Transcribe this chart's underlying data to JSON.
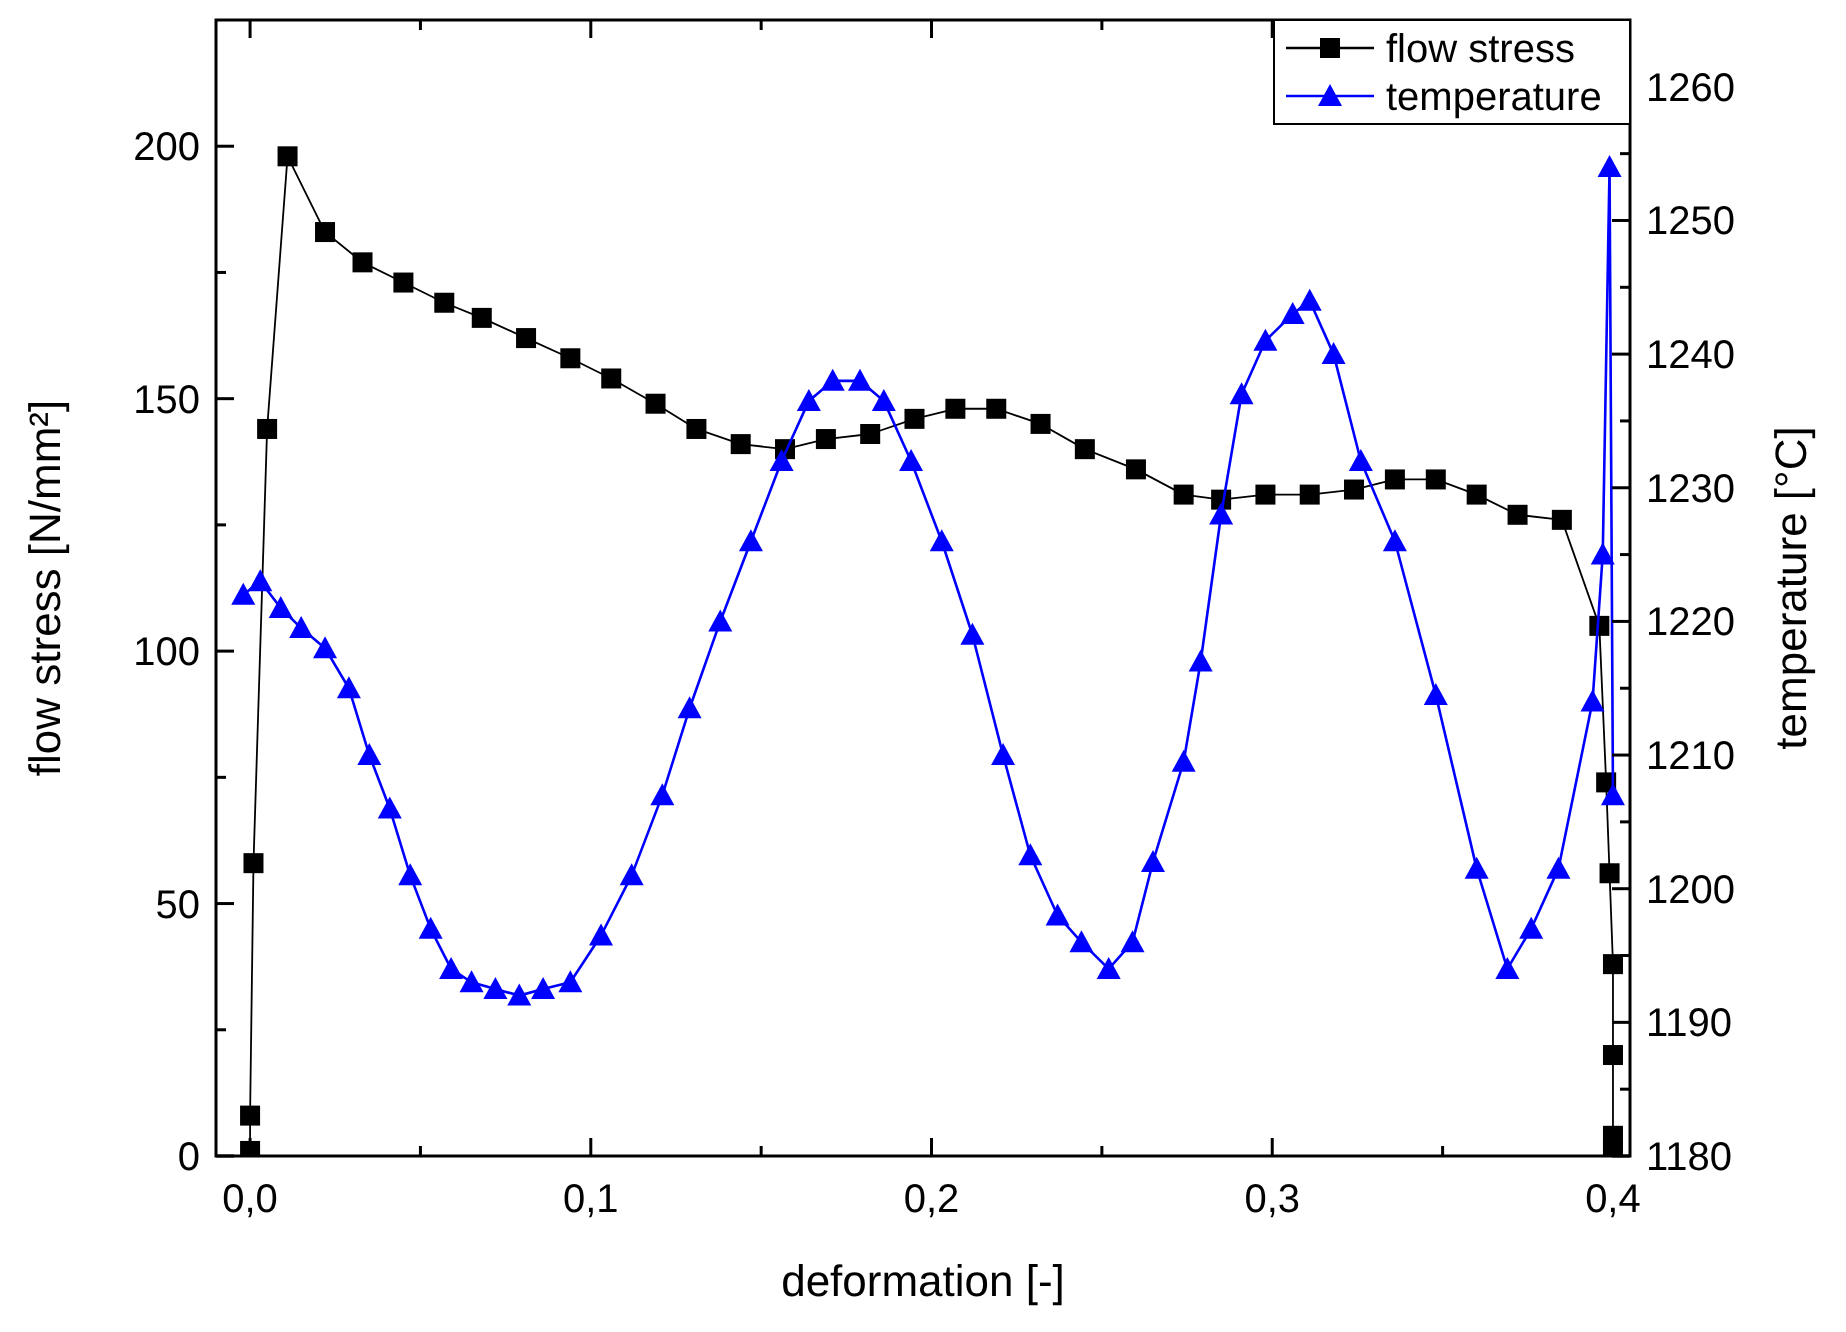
{
  "chart_data": {
    "type": "line",
    "xlabel": "deformation [-]",
    "ylabel": "flow stress [N/mm²]",
    "y2label": "temperature [°C]",
    "xlim": [
      -0.01,
      0.405
    ],
    "xticks": [
      {
        "value": 0,
        "label": "0,0"
      },
      {
        "value": 0.05,
        "label": null
      },
      {
        "value": 0.1,
        "label": "0,1"
      },
      {
        "value": 0.15,
        "label": null
      },
      {
        "value": 0.2,
        "label": "0,2"
      },
      {
        "value": 0.25,
        "label": null
      },
      {
        "value": 0.3,
        "label": "0,3"
      },
      {
        "value": 0.35,
        "label": null
      },
      {
        "value": 0.4,
        "label": "0,4"
      }
    ],
    "ylim": [
      0,
      225
    ],
    "yticks": [
      0,
      {
        "value": 25,
        "label": null
      },
      50,
      {
        "value": 75,
        "label": null
      },
      100,
      {
        "value": 125,
        "label": null
      },
      150,
      {
        "value": 175,
        "label": null
      },
      200
    ],
    "y2lim": [
      1180,
      1265
    ],
    "y2ticks": [
      1180,
      {
        "value": 1185,
        "label": null
      },
      1190,
      {
        "value": 1195,
        "label": null
      },
      1200,
      {
        "value": 1205,
        "label": null
      },
      1210,
      {
        "value": 1215,
        "label": null
      },
      1220,
      {
        "value": 1225,
        "label": null
      },
      1230,
      {
        "value": 1235,
        "label": null
      },
      1240,
      {
        "value": 1245,
        "label": null
      },
      1250,
      {
        "value": 1255,
        "label": null
      },
      1260
    ],
    "grid": false,
    "legend": "top right",
    "series": [
      {
        "name": "flow stress",
        "color": "#000000",
        "marker": "square",
        "x": [
          0.0,
          0.0,
          0.001,
          0.005,
          0.011,
          0.022,
          0.033,
          0.045,
          0.057,
          0.068,
          0.081,
          0.094,
          0.106,
          0.119,
          0.131,
          0.144,
          0.157,
          0.169,
          0.182,
          0.195,
          0.207,
          0.219,
          0.232,
          0.245,
          0.26,
          0.274,
          0.285,
          0.298,
          0.311,
          0.324,
          0.336,
          0.348,
          0.36,
          0.372,
          0.385,
          0.396,
          0.398,
          0.399,
          0.4,
          0.4,
          0.4,
          0.4
        ],
        "values": [
          1,
          8,
          58,
          144,
          198,
          183,
          177,
          173,
          169,
          166,
          162,
          158,
          154,
          149,
          144,
          141,
          140,
          142,
          143,
          146,
          148,
          148,
          145,
          140,
          136,
          131,
          130,
          131,
          131,
          132,
          134,
          134,
          131,
          127,
          126,
          105,
          74,
          56,
          38,
          20,
          4,
          1
        ]
      },
      {
        "name": "temperature",
        "color": "#0000ff",
        "marker": "triangle",
        "axis": "y2",
        "x": [
          -0.002,
          0.003,
          0.009,
          0.015,
          0.022,
          0.029,
          0.035,
          0.041,
          0.047,
          0.053,
          0.059,
          0.065,
          0.072,
          0.079,
          0.086,
          0.094,
          0.103,
          0.112,
          0.121,
          0.129,
          0.138,
          0.147,
          0.156,
          0.164,
          0.171,
          0.179,
          0.186,
          0.194,
          0.203,
          0.212,
          0.221,
          0.229,
          0.237,
          0.244,
          0.252,
          0.259,
          0.265,
          0.274,
          0.279,
          0.285,
          0.291,
          0.298,
          0.306,
          0.311,
          0.318,
          0.326,
          0.336,
          0.348,
          0.36,
          0.369,
          0.376,
          0.384,
          0.394,
          0.397,
          0.399,
          0.4
        ],
        "values": [
          1222,
          1223,
          1221,
          1219.5,
          1218,
          1215,
          1210,
          1206,
          1201,
          1197,
          1194,
          1193,
          1192.5,
          1192,
          1192.5,
          1193,
          1196.5,
          1201,
          1207,
          1213.5,
          1220,
          1226,
          1232,
          1236.5,
          1238,
          1238,
          1236.5,
          1232,
          1226,
          1219,
          1210,
          1202.5,
          1198,
          1196,
          1194,
          1196,
          1202,
          1209.5,
          1217,
          1228,
          1237,
          1241,
          1243,
          1244,
          1240,
          1232,
          1226,
          1214.5,
          1201.5,
          1194,
          1197,
          1201.5,
          1214,
          1225,
          1254,
          1207
        ]
      }
    ]
  }
}
